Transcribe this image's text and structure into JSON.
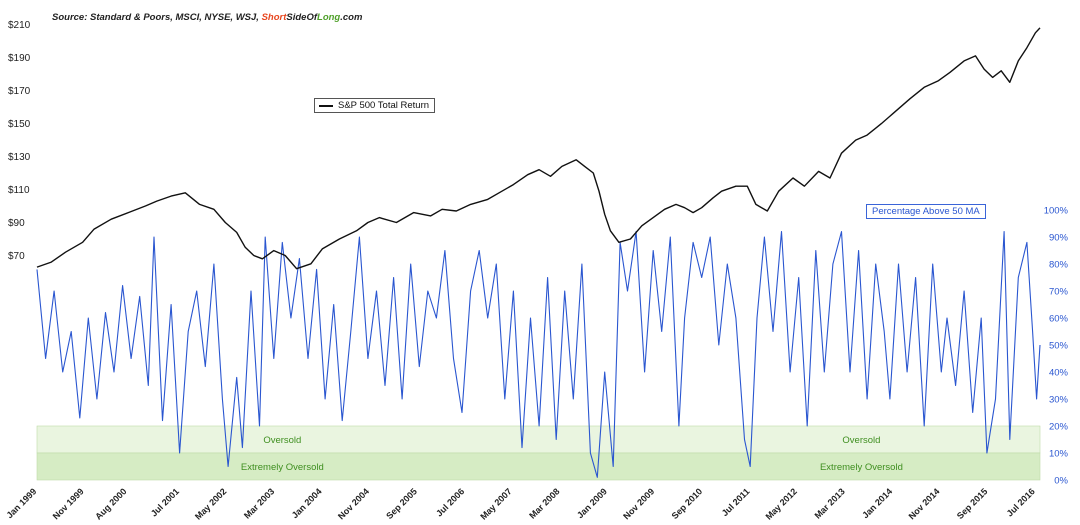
{
  "source": {
    "prefix": "Source: Standard & Poors, MSCI, NYSE, WSJ, ",
    "brand_short": "Short",
    "brand_side": "SideOf",
    "brand_long": "Long",
    "brand_suffix": ".com"
  },
  "colors": {
    "price_line": "#111111",
    "breadth_line": "#2a56d0",
    "oversold_fill": "#eaf5e0",
    "extremely_oversold_fill": "#d6ecc4",
    "zone_text": "#3f8f20"
  },
  "chart_data": {
    "type": "line",
    "x_ticks": [
      "Jan 1999",
      "Nov 1999",
      "Aug 2000",
      "Jul 2001",
      "May 2002",
      "Mar 2003",
      "Jan 2004",
      "Nov 2004",
      "Sep 2005",
      "Jul 2006",
      "May 2007",
      "Mar 2008",
      "Jan 2009",
      "Nov 2009",
      "Sep 2010",
      "Jul 2011",
      "May 2012",
      "Mar 2013",
      "Jan 2014",
      "Nov 2014",
      "Sep 2015",
      "Jul 2016"
    ],
    "x_tick_years": [
      1999.0,
      1999.83,
      2000.58,
      2001.5,
      2002.33,
      2003.17,
      2004.0,
      2004.83,
      2005.67,
      2006.5,
      2007.33,
      2008.17,
      2009.0,
      2009.83,
      2010.67,
      2011.5,
      2012.33,
      2013.17,
      2014.0,
      2014.83,
      2015.67,
      2016.5
    ],
    "x_range": [
      1999.0,
      2016.58
    ],
    "left_axis": {
      "ticks": [
        "$70",
        "$90",
        "$110",
        "$130",
        "$150",
        "$170",
        "$190",
        "$210"
      ],
      "tick_values": [
        70,
        90,
        110,
        130,
        150,
        170,
        190,
        210
      ],
      "range": [
        60,
        214
      ]
    },
    "right_axis": {
      "ticks": [
        "0%",
        "10%",
        "20%",
        "30%",
        "40%",
        "50%",
        "60%",
        "70%",
        "80%",
        "90%",
        "100%"
      ],
      "tick_values": [
        0,
        10,
        20,
        30,
        40,
        50,
        60,
        70,
        80,
        90,
        100
      ],
      "range": [
        0,
        100
      ]
    },
    "bands": [
      {
        "label": "Oversold",
        "from": 10,
        "to": 20
      },
      {
        "label": "Extremely Oversold",
        "from": 0,
        "to": 10
      }
    ],
    "band_label_years": [
      2003.3,
      2013.45
    ],
    "series": [
      {
        "name": "S&P 500 Total Return",
        "axis": "left",
        "points": [
          [
            1999.0,
            63
          ],
          [
            1999.25,
            66
          ],
          [
            1999.5,
            72
          ],
          [
            1999.8,
            78
          ],
          [
            2000.0,
            86
          ],
          [
            2000.3,
            92
          ],
          [
            2000.6,
            96
          ],
          [
            2000.9,
            100
          ],
          [
            2001.1,
            103
          ],
          [
            2001.35,
            106
          ],
          [
            2001.6,
            108
          ],
          [
            2001.85,
            101
          ],
          [
            2002.1,
            98
          ],
          [
            2002.3,
            90
          ],
          [
            2002.5,
            84
          ],
          [
            2002.65,
            75
          ],
          [
            2002.8,
            70
          ],
          [
            2002.95,
            68
          ],
          [
            2003.15,
            73
          ],
          [
            2003.35,
            70
          ],
          [
            2003.55,
            62
          ],
          [
            2003.8,
            65
          ],
          [
            2004.0,
            74
          ],
          [
            2004.3,
            80
          ],
          [
            2004.6,
            85
          ],
          [
            2004.8,
            90
          ],
          [
            2005.0,
            93
          ],
          [
            2005.3,
            90
          ],
          [
            2005.6,
            96
          ],
          [
            2005.9,
            94
          ],
          [
            2006.1,
            98
          ],
          [
            2006.35,
            97
          ],
          [
            2006.6,
            101
          ],
          [
            2006.9,
            104
          ],
          [
            2007.1,
            108
          ],
          [
            2007.35,
            113
          ],
          [
            2007.6,
            119
          ],
          [
            2007.8,
            122
          ],
          [
            2008.0,
            118
          ],
          [
            2008.2,
            124
          ],
          [
            2008.45,
            128
          ],
          [
            2008.6,
            124
          ],
          [
            2008.75,
            120
          ],
          [
            2008.85,
            109
          ],
          [
            2008.95,
            95
          ],
          [
            2009.05,
            85
          ],
          [
            2009.2,
            78
          ],
          [
            2009.4,
            80
          ],
          [
            2009.6,
            88
          ],
          [
            2009.8,
            93
          ],
          [
            2010.0,
            98
          ],
          [
            2010.2,
            101
          ],
          [
            2010.35,
            99
          ],
          [
            2010.5,
            96
          ],
          [
            2010.65,
            99
          ],
          [
            2010.85,
            105
          ],
          [
            2011.0,
            109
          ],
          [
            2011.25,
            112
          ],
          [
            2011.45,
            112
          ],
          [
            2011.6,
            101
          ],
          [
            2011.8,
            97
          ],
          [
            2012.0,
            109
          ],
          [
            2012.25,
            117
          ],
          [
            2012.45,
            112
          ],
          [
            2012.7,
            121
          ],
          [
            2012.9,
            117
          ],
          [
            2013.1,
            132
          ],
          [
            2013.35,
            140
          ],
          [
            2013.55,
            143
          ],
          [
            2013.8,
            150
          ],
          [
            2014.0,
            156
          ],
          [
            2014.3,
            165
          ],
          [
            2014.55,
            172
          ],
          [
            2014.8,
            176
          ],
          [
            2015.0,
            181
          ],
          [
            2015.25,
            188
          ],
          [
            2015.45,
            191
          ],
          [
            2015.6,
            183
          ],
          [
            2015.75,
            178
          ],
          [
            2015.9,
            182
          ],
          [
            2016.05,
            175
          ],
          [
            2016.2,
            188
          ],
          [
            2016.35,
            196
          ],
          [
            2016.5,
            205
          ],
          [
            2016.58,
            208
          ]
        ]
      },
      {
        "name": "Percentage Above 50 MA",
        "axis": "right",
        "points": [
          [
            1999.0,
            78
          ],
          [
            1999.15,
            45
          ],
          [
            1999.3,
            70
          ],
          [
            1999.45,
            40
          ],
          [
            1999.6,
            55
          ],
          [
            1999.75,
            23
          ],
          [
            1999.9,
            60
          ],
          [
            2000.05,
            30
          ],
          [
            2000.2,
            62
          ],
          [
            2000.35,
            40
          ],
          [
            2000.5,
            72
          ],
          [
            2000.65,
            45
          ],
          [
            2000.8,
            68
          ],
          [
            2000.95,
            35
          ],
          [
            2001.05,
            90
          ],
          [
            2001.2,
            22
          ],
          [
            2001.35,
            65
          ],
          [
            2001.5,
            10
          ],
          [
            2001.65,
            55
          ],
          [
            2001.8,
            70
          ],
          [
            2001.95,
            42
          ],
          [
            2002.1,
            80
          ],
          [
            2002.25,
            30
          ],
          [
            2002.35,
            5
          ],
          [
            2002.5,
            38
          ],
          [
            2002.6,
            12
          ],
          [
            2002.75,
            70
          ],
          [
            2002.9,
            20
          ],
          [
            2003.0,
            90
          ],
          [
            2003.15,
            45
          ],
          [
            2003.3,
            88
          ],
          [
            2003.45,
            60
          ],
          [
            2003.6,
            82
          ],
          [
            2003.75,
            45
          ],
          [
            2003.9,
            78
          ],
          [
            2004.05,
            30
          ],
          [
            2004.2,
            65
          ],
          [
            2004.35,
            22
          ],
          [
            2004.5,
            55
          ],
          [
            2004.65,
            90
          ],
          [
            2004.8,
            45
          ],
          [
            2004.95,
            70
          ],
          [
            2005.1,
            35
          ],
          [
            2005.25,
            75
          ],
          [
            2005.4,
            30
          ],
          [
            2005.55,
            80
          ],
          [
            2005.7,
            42
          ],
          [
            2005.85,
            70
          ],
          [
            2006.0,
            60
          ],
          [
            2006.15,
            85
          ],
          [
            2006.3,
            45
          ],
          [
            2006.45,
            25
          ],
          [
            2006.6,
            70
          ],
          [
            2006.75,
            85
          ],
          [
            2006.9,
            60
          ],
          [
            2007.05,
            80
          ],
          [
            2007.2,
            30
          ],
          [
            2007.35,
            70
          ],
          [
            2007.5,
            12
          ],
          [
            2007.65,
            60
          ],
          [
            2007.8,
            20
          ],
          [
            2007.95,
            75
          ],
          [
            2008.1,
            15
          ],
          [
            2008.25,
            70
          ],
          [
            2008.4,
            30
          ],
          [
            2008.55,
            80
          ],
          [
            2008.7,
            10
          ],
          [
            2008.82,
            1
          ],
          [
            2008.95,
            40
          ],
          [
            2009.1,
            5
          ],
          [
            2009.22,
            88
          ],
          [
            2009.35,
            70
          ],
          [
            2009.5,
            92
          ],
          [
            2009.65,
            40
          ],
          [
            2009.8,
            85
          ],
          [
            2009.95,
            55
          ],
          [
            2010.1,
            90
          ],
          [
            2010.25,
            20
          ],
          [
            2010.35,
            60
          ],
          [
            2010.5,
            88
          ],
          [
            2010.65,
            75
          ],
          [
            2010.8,
            90
          ],
          [
            2010.95,
            50
          ],
          [
            2011.1,
            80
          ],
          [
            2011.25,
            60
          ],
          [
            2011.4,
            15
          ],
          [
            2011.5,
            5
          ],
          [
            2011.62,
            60
          ],
          [
            2011.75,
            90
          ],
          [
            2011.9,
            55
          ],
          [
            2012.05,
            92
          ],
          [
            2012.2,
            40
          ],
          [
            2012.35,
            75
          ],
          [
            2012.5,
            20
          ],
          [
            2012.65,
            85
          ],
          [
            2012.8,
            40
          ],
          [
            2012.95,
            80
          ],
          [
            2013.1,
            92
          ],
          [
            2013.25,
            40
          ],
          [
            2013.4,
            85
          ],
          [
            2013.55,
            30
          ],
          [
            2013.7,
            80
          ],
          [
            2013.85,
            55
          ],
          [
            2013.95,
            30
          ],
          [
            2014.1,
            80
          ],
          [
            2014.25,
            40
          ],
          [
            2014.4,
            75
          ],
          [
            2014.55,
            20
          ],
          [
            2014.7,
            80
          ],
          [
            2014.85,
            40
          ],
          [
            2014.95,
            60
          ],
          [
            2015.1,
            35
          ],
          [
            2015.25,
            70
          ],
          [
            2015.4,
            25
          ],
          [
            2015.55,
            60
          ],
          [
            2015.65,
            10
          ],
          [
            2015.8,
            30
          ],
          [
            2015.95,
            92
          ],
          [
            2016.05,
            15
          ],
          [
            2016.2,
            75
          ],
          [
            2016.35,
            88
          ],
          [
            2016.45,
            55
          ],
          [
            2016.52,
            30
          ],
          [
            2016.58,
            50
          ]
        ]
      }
    ]
  }
}
